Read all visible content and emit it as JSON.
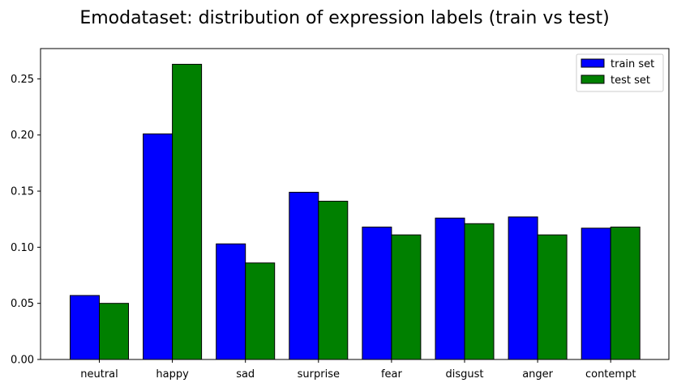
{
  "chart_data": {
    "type": "bar",
    "title": "Emodataset: distribution of expression labels (train vs test)",
    "xlabel": "",
    "ylabel": "",
    "categories": [
      "neutral",
      "happy",
      "sad",
      "surprise",
      "fear",
      "disgust",
      "anger",
      "contempt"
    ],
    "series": [
      {
        "name": "train set",
        "color": "#0000ff",
        "values": [
          0.057,
          0.201,
          0.103,
          0.149,
          0.118,
          0.126,
          0.127,
          0.117
        ]
      },
      {
        "name": "test set",
        "color": "#008000",
        "values": [
          0.05,
          0.263,
          0.086,
          0.141,
          0.111,
          0.121,
          0.111,
          0.118
        ]
      }
    ],
    "ylim": [
      0,
      0.277
    ],
    "yticks": [
      "0.00",
      "0.05",
      "0.10",
      "0.15",
      "0.20",
      "0.25"
    ],
    "grid": false,
    "legend": "top-right"
  }
}
